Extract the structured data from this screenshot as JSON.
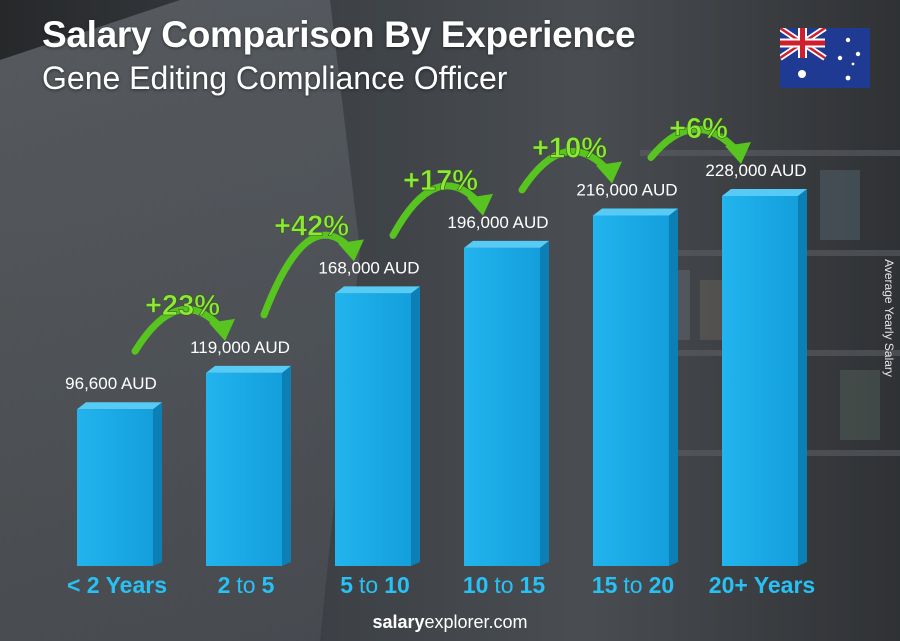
{
  "header": {
    "title": "Salary Comparison By Experience",
    "subtitle": "Gene Editing Compliance Officer"
  },
  "flag": {
    "country": "Australia",
    "icon": "australia-flag-icon"
  },
  "ylabel": "Average Yearly Salary",
  "footer": {
    "brand_bold": "salary",
    "brand_rest": "explorer.com"
  },
  "chart_data": {
    "type": "bar",
    "title": "Salary Comparison By Experience",
    "subtitle": "Gene Editing Compliance Officer",
    "ylabel": "Average Yearly Salary",
    "unit": "AUD",
    "categories": [
      {
        "num1": "< 2",
        "mid": "",
        "num2": "Years"
      },
      {
        "num1": "2",
        "mid": "to",
        "num2": "5"
      },
      {
        "num1": "5",
        "mid": "to",
        "num2": "10"
      },
      {
        "num1": "10",
        "mid": "to",
        "num2": "15"
      },
      {
        "num1": "15",
        "mid": "to",
        "num2": "20"
      },
      {
        "num1": "20+",
        "mid": "",
        "num2": "Years"
      }
    ],
    "values": [
      96600,
      119000,
      168000,
      196000,
      216000,
      228000
    ],
    "value_labels": [
      "96,600 AUD",
      "119,000 AUD",
      "168,000 AUD",
      "196,000 AUD",
      "216,000 AUD",
      "228,000 AUD"
    ],
    "changes": [
      "+23%",
      "+42%",
      "+17%",
      "+10%",
      "+6%"
    ],
    "colors": {
      "bar_front": "#1aa9e6",
      "bar_side": "#0c7fb4",
      "bar_top": "#56cbf5",
      "change_text": "#8ee83a",
      "arrow": "#58c41f",
      "category_text": "#27c1f5"
    }
  }
}
